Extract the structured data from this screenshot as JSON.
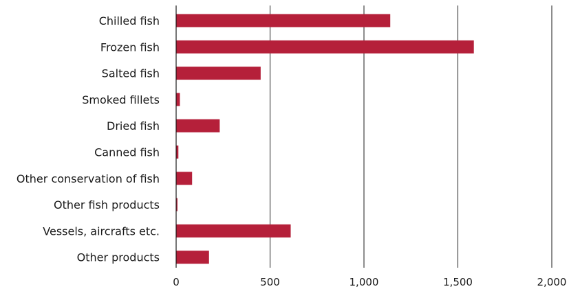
{
  "chart_data": {
    "type": "bar",
    "orientation": "horizontal",
    "title": "",
    "xlabel": "",
    "ylabel": "",
    "categories": [
      "Chilled fish",
      "Frozen fish",
      "Salted fish",
      "Smoked fillets",
      "Dried fish",
      "Canned fish",
      "Other conservation of fish",
      "Other fish products",
      "Vessels, aircrafts etc.",
      "Other products"
    ],
    "values": [
      1140,
      1585,
      450,
      20,
      232,
      12,
      85,
      7,
      610,
      175
    ],
    "xlim": [
      0,
      2000
    ],
    "xticks": [
      0,
      500,
      1000,
      1500,
      2000
    ],
    "xtick_labels": [
      "0",
      "500",
      "1,000",
      "1,500",
      "2,000"
    ],
    "grid": "vertical",
    "bar_color": "#b5203a"
  }
}
